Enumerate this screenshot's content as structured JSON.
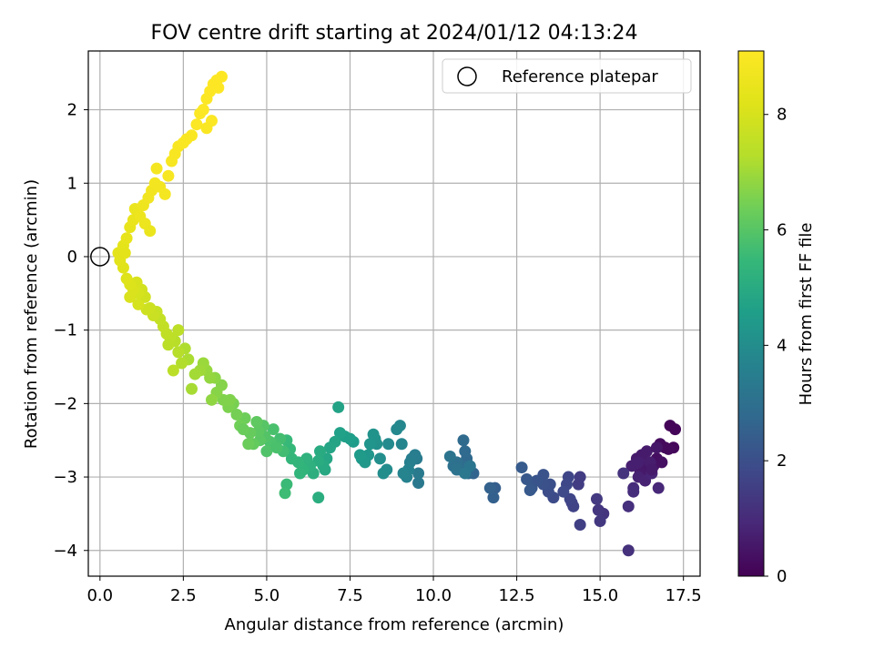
{
  "chart_data": {
    "type": "scatter",
    "title": "FOV centre drift starting at 2024/01/12 04:13:24",
    "xlabel": "Angular distance from reference (arcmin)",
    "ylabel": "Rotation from reference (arcmin)",
    "xlim": [
      -0.35,
      18.0
    ],
    "ylim": [
      -4.35,
      2.8
    ],
    "xticks": [
      "0.0",
      "2.5",
      "5.0",
      "7.5",
      "10.0",
      "12.5",
      "15.0",
      "17.5"
    ],
    "yticks": [
      "−4",
      "−3",
      "−2",
      "−1",
      "0",
      "1",
      "2"
    ],
    "grid": true,
    "legend": {
      "placement": "top-right",
      "entries": [
        {
          "label": "Reference platepar",
          "marker": "open-circle"
        }
      ]
    },
    "reference_point": {
      "x": 0.0,
      "y": 0.0
    },
    "colorbar": {
      "label": "Hours from first FF file",
      "colormap": "viridis",
      "range": [
        0,
        9.1
      ],
      "ticks": [
        "0",
        "2",
        "4",
        "6",
        "8"
      ]
    },
    "series": [
      {
        "points": [
          [
            17.1,
            -2.3,
            0.1
          ],
          [
            17.25,
            -2.35,
            0.1
          ],
          [
            17.2,
            -2.6,
            0.15
          ],
          [
            17.05,
            -2.62,
            0.2
          ],
          [
            16.8,
            -2.55,
            0.25
          ],
          [
            16.95,
            -2.6,
            0.2
          ],
          [
            16.7,
            -2.75,
            0.3
          ],
          [
            16.85,
            -2.8,
            0.35
          ],
          [
            16.6,
            -2.85,
            0.4
          ],
          [
            16.45,
            -2.9,
            0.45
          ],
          [
            16.3,
            -2.85,
            0.5
          ],
          [
            16.2,
            -2.95,
            0.55
          ],
          [
            16.1,
            -2.75,
            0.6
          ],
          [
            16.25,
            -2.7,
            0.6
          ],
          [
            16.4,
            -2.65,
            0.6
          ],
          [
            16.5,
            -2.8,
            0.65
          ],
          [
            15.95,
            -2.85,
            0.7
          ],
          [
            16.15,
            -3.0,
            0.75
          ],
          [
            16.35,
            -3.05,
            0.8
          ],
          [
            16.55,
            -2.95,
            0.85
          ],
          [
            16.75,
            -3.15,
            0.9
          ],
          [
            16.0,
            -3.15,
            1.0
          ],
          [
            16.0,
            -3.2,
            1.05
          ],
          [
            15.85,
            -3.4,
            1.1
          ],
          [
            15.85,
            -4.0,
            1.15
          ],
          [
            15.7,
            -2.95,
            1.2
          ],
          [
            16.15,
            -2.8,
            0.7
          ],
          [
            16.7,
            -2.6,
            0.5
          ],
          [
            16.55,
            -2.9,
            0.6
          ],
          [
            15.1,
            -3.5,
            1.25
          ],
          [
            14.95,
            -3.45,
            1.3
          ],
          [
            15.0,
            -3.6,
            1.35
          ],
          [
            14.9,
            -3.3,
            1.4
          ],
          [
            14.4,
            -3.0,
            1.45
          ],
          [
            14.35,
            -3.1,
            1.5
          ],
          [
            14.4,
            -3.65,
            1.55
          ],
          [
            14.15,
            -3.35,
            1.6
          ],
          [
            14.2,
            -3.4,
            1.65
          ],
          [
            14.1,
            -3.3,
            1.7
          ],
          [
            14.05,
            -3.0,
            1.75
          ],
          [
            14.0,
            -3.1,
            1.8
          ],
          [
            13.9,
            -3.2,
            1.85
          ],
          [
            13.6,
            -3.28,
            1.9
          ],
          [
            13.45,
            -3.2,
            1.95
          ],
          [
            13.5,
            -3.1,
            2.0
          ],
          [
            13.3,
            -3.1,
            2.05
          ],
          [
            13.3,
            -2.97,
            2.1
          ],
          [
            13.1,
            -3.05,
            2.15
          ],
          [
            12.95,
            -3.15,
            2.2
          ],
          [
            12.8,
            -3.03,
            2.25
          ],
          [
            12.9,
            -3.18,
            2.3
          ],
          [
            12.65,
            -2.87,
            2.35
          ],
          [
            11.85,
            -3.15,
            2.45
          ],
          [
            11.8,
            -3.28,
            2.5
          ],
          [
            11.7,
            -3.15,
            2.55
          ],
          [
            11.2,
            -2.95,
            2.6
          ],
          [
            11.0,
            -2.9,
            2.65
          ],
          [
            11.05,
            -2.95,
            2.7
          ],
          [
            11.0,
            -2.75,
            2.75
          ],
          [
            10.95,
            -2.65,
            2.8
          ],
          [
            10.9,
            -2.5,
            2.85
          ],
          [
            10.85,
            -2.85,
            2.9
          ],
          [
            10.8,
            -2.9,
            2.95
          ],
          [
            10.7,
            -2.8,
            3.0
          ],
          [
            10.6,
            -2.85,
            3.05
          ],
          [
            10.7,
            -2.9,
            3.1
          ],
          [
            10.5,
            -2.72,
            3.15
          ],
          [
            11.1,
            -2.85,
            3.2
          ],
          [
            10.95,
            -2.95,
            3.25
          ],
          [
            9.55,
            -3.08,
            3.3
          ],
          [
            9.55,
            -2.95,
            3.35
          ],
          [
            9.5,
            -2.75,
            3.4
          ],
          [
            9.45,
            -2.7,
            3.45
          ],
          [
            9.35,
            -2.75,
            3.5
          ],
          [
            9.3,
            -2.8,
            3.55
          ],
          [
            9.25,
            -2.9,
            3.6
          ],
          [
            9.2,
            -3.0,
            3.65
          ],
          [
            9.1,
            -2.95,
            3.7
          ],
          [
            9.05,
            -2.55,
            3.75
          ],
          [
            9.0,
            -2.3,
            3.8
          ],
          [
            8.9,
            -2.35,
            3.85
          ],
          [
            8.65,
            -2.55,
            3.9
          ],
          [
            8.6,
            -2.9,
            3.95
          ],
          [
            8.5,
            -2.95,
            4.0
          ],
          [
            8.4,
            -2.75,
            4.05
          ],
          [
            8.3,
            -2.55,
            4.1
          ],
          [
            8.25,
            -2.48,
            4.15
          ],
          [
            8.2,
            -2.42,
            4.2
          ],
          [
            8.1,
            -2.55,
            4.25
          ],
          [
            8.05,
            -2.7,
            4.3
          ],
          [
            7.95,
            -2.8,
            4.35
          ],
          [
            7.85,
            -2.75,
            4.4
          ],
          [
            7.8,
            -2.7,
            4.45
          ],
          [
            7.6,
            -2.52,
            4.5
          ],
          [
            7.5,
            -2.48,
            4.55
          ],
          [
            7.35,
            -2.45,
            4.6
          ],
          [
            7.2,
            -2.4,
            4.65
          ],
          [
            7.15,
            -2.05,
            4.7
          ],
          [
            7.05,
            -2.52,
            4.75
          ],
          [
            6.9,
            -2.6,
            4.8
          ],
          [
            6.8,
            -2.75,
            4.85
          ],
          [
            6.75,
            -2.9,
            4.9
          ],
          [
            6.7,
            -2.85,
            4.95
          ],
          [
            6.6,
            -2.65,
            5.0
          ],
          [
            6.55,
            -2.78,
            5.05
          ],
          [
            6.55,
            -3.28,
            5.1
          ],
          [
            6.4,
            -2.95,
            5.15
          ],
          [
            6.3,
            -2.85,
            5.2
          ],
          [
            6.2,
            -2.75,
            5.25
          ],
          [
            6.1,
            -2.9,
            5.3
          ],
          [
            5.95,
            -2.8,
            5.35
          ],
          [
            5.75,
            -2.75,
            5.4
          ],
          [
            5.7,
            -2.62,
            5.45
          ],
          [
            5.6,
            -2.5,
            5.5
          ],
          [
            5.6,
            -3.1,
            5.55
          ],
          [
            5.55,
            -3.22,
            5.6
          ],
          [
            5.5,
            -2.65,
            5.65
          ],
          [
            5.4,
            -2.48,
            5.7
          ],
          [
            5.25,
            -2.55,
            5.75
          ],
          [
            5.2,
            -2.35,
            5.8
          ],
          [
            5.1,
            -2.52,
            5.85
          ],
          [
            5.0,
            -2.65,
            5.9
          ],
          [
            4.95,
            -2.45,
            5.95
          ],
          [
            4.9,
            -2.3,
            6.0
          ],
          [
            4.8,
            -2.5,
            6.05
          ],
          [
            4.75,
            -2.38,
            6.1
          ],
          [
            4.7,
            -2.25,
            6.15
          ],
          [
            4.6,
            -2.55,
            6.2
          ],
          [
            4.5,
            -2.4,
            6.25
          ],
          [
            4.45,
            -2.55,
            6.3
          ],
          [
            4.35,
            -2.2,
            6.35
          ],
          [
            4.2,
            -2.3,
            6.4
          ],
          [
            4.1,
            -2.15,
            6.45
          ],
          [
            4.0,
            -2.0,
            6.5
          ],
          [
            3.85,
            -2.05,
            6.55
          ],
          [
            3.7,
            -1.95,
            6.6
          ],
          [
            3.65,
            -1.75,
            6.65
          ],
          [
            3.5,
            -1.85,
            6.7
          ],
          [
            3.45,
            -1.65,
            6.75
          ],
          [
            3.35,
            -1.95,
            6.8
          ],
          [
            3.3,
            -1.65,
            6.85
          ],
          [
            3.2,
            -1.55,
            6.9
          ],
          [
            3.1,
            -1.45,
            6.95
          ],
          [
            3.0,
            -1.55,
            7.0
          ],
          [
            2.85,
            -1.6,
            7.05
          ],
          [
            2.75,
            -1.8,
            7.1
          ],
          [
            2.65,
            -1.4,
            7.15
          ],
          [
            2.55,
            -1.25,
            7.2
          ],
          [
            2.45,
            -1.45,
            7.25
          ],
          [
            2.35,
            -1.3,
            7.3
          ],
          [
            2.25,
            -1.15,
            7.35
          ],
          [
            2.2,
            -1.55,
            7.4
          ],
          [
            2.1,
            -1.1,
            7.45
          ],
          [
            2.0,
            -1.05,
            7.5
          ],
          [
            1.9,
            -0.95,
            7.55
          ],
          [
            1.8,
            -0.85,
            7.6
          ],
          [
            1.7,
            -0.75,
            7.65
          ],
          [
            1.6,
            -0.8,
            7.7
          ],
          [
            1.5,
            -0.7,
            7.75
          ],
          [
            1.4,
            -0.72,
            7.8
          ],
          [
            1.35,
            -0.55,
            7.85
          ],
          [
            1.25,
            -0.45,
            7.9
          ],
          [
            1.15,
            -0.5,
            7.95
          ],
          [
            1.1,
            -0.35,
            8.0
          ],
          [
            1.0,
            -0.45,
            8.05
          ],
          [
            0.9,
            -0.38,
            8.1
          ],
          [
            0.8,
            -0.3,
            8.15
          ],
          [
            0.7,
            -0.15,
            8.2
          ],
          [
            0.6,
            -0.05,
            8.25
          ],
          [
            0.55,
            0.05,
            8.3
          ],
          [
            0.7,
            0.15,
            8.35
          ],
          [
            0.8,
            0.25,
            8.4
          ],
          [
            0.9,
            0.4,
            8.45
          ],
          [
            1.0,
            0.5,
            8.5
          ],
          [
            1.05,
            0.65,
            8.55
          ],
          [
            1.2,
            0.55,
            8.6
          ],
          [
            1.3,
            0.7,
            8.65
          ],
          [
            1.45,
            0.8,
            8.7
          ],
          [
            1.55,
            0.9,
            8.75
          ],
          [
            1.65,
            1.0,
            8.8
          ],
          [
            1.7,
            1.2,
            8.85
          ],
          [
            1.8,
            0.95,
            8.8
          ],
          [
            1.95,
            0.85,
            8.85
          ],
          [
            2.05,
            1.1,
            8.9
          ],
          [
            2.15,
            1.3,
            8.9
          ],
          [
            2.25,
            1.4,
            8.95
          ],
          [
            2.35,
            1.5,
            8.95
          ],
          [
            2.5,
            1.55,
            9.0
          ],
          [
            2.6,
            1.6,
            9.0
          ],
          [
            2.75,
            1.65,
            9.0
          ],
          [
            2.9,
            1.8,
            9.05
          ],
          [
            3.0,
            1.95,
            9.05
          ],
          [
            3.1,
            2.0,
            9.05
          ],
          [
            3.2,
            2.15,
            9.05
          ],
          [
            3.3,
            2.25,
            9.1
          ],
          [
            3.4,
            2.35,
            9.1
          ],
          [
            3.5,
            2.4,
            9.1
          ],
          [
            3.55,
            2.3,
            9.1
          ],
          [
            3.65,
            2.45,
            9.1
          ],
          [
            3.35,
            1.85,
            9.05
          ],
          [
            3.2,
            1.75,
            9.0
          ],
          [
            1.35,
            0.45,
            8.6
          ],
          [
            1.5,
            0.35,
            8.55
          ],
          [
            0.9,
            -0.55,
            8.05
          ],
          [
            1.15,
            -0.65,
            7.95
          ],
          [
            0.75,
            0.05,
            8.3
          ],
          [
            2.05,
            -1.2,
            7.4
          ],
          [
            2.35,
            -1.0,
            7.45
          ],
          [
            3.9,
            -1.95,
            6.6
          ],
          [
            4.3,
            -2.35,
            6.3
          ],
          [
            5.3,
            -2.6,
            5.8
          ],
          [
            6.0,
            -2.95,
            5.35
          ]
        ]
      }
    ]
  }
}
